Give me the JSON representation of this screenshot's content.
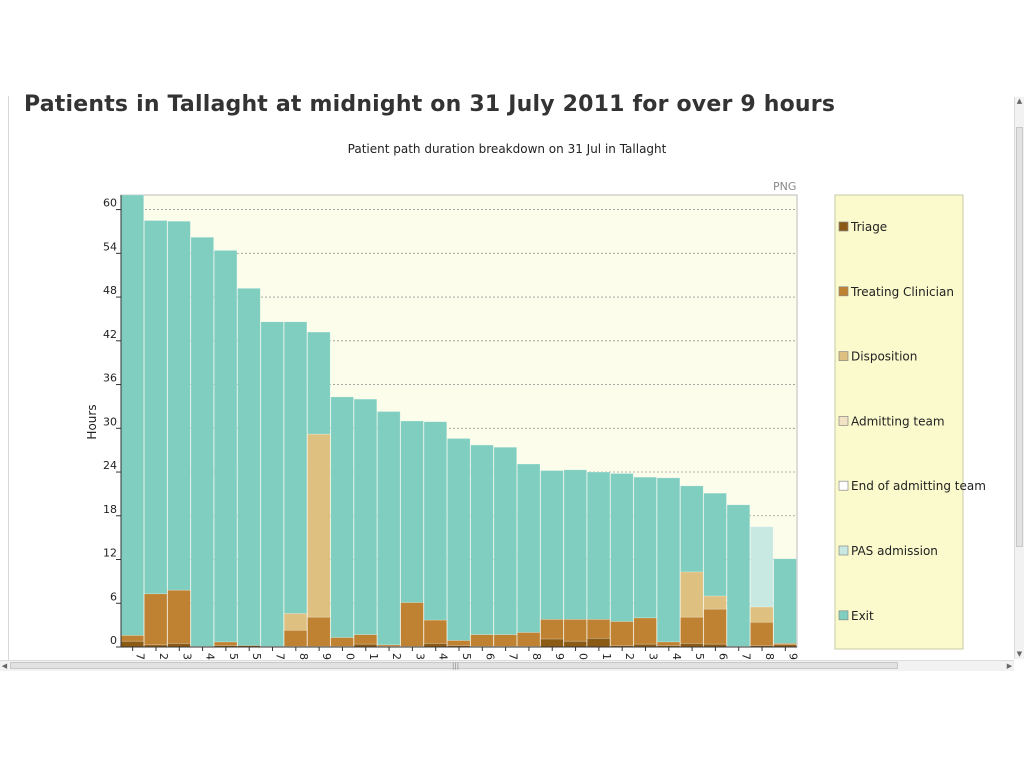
{
  "page": {
    "title": "Patients in Tallaght at midnight on 31 July 2011 for over 9 hours"
  },
  "export_label": "PNG",
  "chart_data": {
    "type": "bar",
    "stacked": true,
    "title": "Patient path duration breakdown on 31 Jul in Tallaght",
    "ylabel": "Hours",
    "xlabel": "",
    "ylim": [
      0,
      62
    ],
    "yticks": [
      0,
      6,
      12,
      18,
      24,
      30,
      36,
      42,
      48,
      54,
      60
    ],
    "grid": true,
    "legend_position": "right",
    "categories": [
      "7",
      "2",
      "3",
      "4",
      "5",
      "5",
      "7",
      "8",
      "9",
      "0",
      "1",
      "2",
      "3",
      "4",
      "5",
      "6",
      "7",
      "8",
      "9",
      "0",
      "1",
      "2",
      "3",
      "4",
      "5",
      "6",
      "7",
      "8",
      "9"
    ],
    "series": [
      {
        "name": "Triage",
        "color": "#8B5A14",
        "values": [
          0.8,
          0.3,
          0.5,
          0.1,
          0.2,
          0.2,
          0.1,
          0.1,
          0.1,
          0.1,
          0.4,
          0.1,
          0.1,
          0.5,
          0.2,
          0.1,
          0.1,
          0.1,
          1.1,
          0.8,
          1.2,
          0.2,
          0.4,
          0.2,
          0.5,
          0.4,
          0.1,
          0.2,
          0.3
        ]
      },
      {
        "name": "Treating Clinician",
        "color": "#BF8232",
        "values": [
          0.8,
          7.0,
          7.3,
          0,
          0.5,
          0,
          0,
          2.2,
          4.0,
          1.2,
          1.3,
          0.2,
          6.0,
          3.2,
          0.7,
          1.6,
          1.6,
          1.9,
          2.7,
          3.0,
          2.6,
          3.3,
          3.6,
          0.5,
          3.6,
          4.8,
          0,
          3.2,
          0.2
        ]
      },
      {
        "name": "Disposition",
        "color": "#DEC080",
        "values": [
          0,
          0,
          0,
          0,
          0,
          0,
          0,
          2.3,
          25.1,
          0,
          0,
          0,
          0,
          0,
          0,
          0,
          0,
          0,
          0,
          0,
          0,
          0,
          0,
          0,
          6.2,
          1.8,
          0,
          2.1,
          0
        ]
      },
      {
        "name": "Admitting team",
        "color": "#F1E3C3",
        "values": [
          0,
          0,
          0,
          0,
          0,
          0,
          0,
          0,
          0,
          0,
          0,
          0,
          0,
          0,
          0,
          0,
          0,
          0,
          0,
          0,
          0,
          0,
          0,
          0,
          0,
          0,
          0,
          0,
          0
        ]
      },
      {
        "name": "End of admitting team",
        "color": "#FFFFFF",
        "values": [
          0,
          0,
          0,
          0,
          0,
          0,
          0,
          0,
          0,
          0,
          0,
          0,
          0,
          0,
          0,
          0,
          0,
          0,
          0,
          0,
          0,
          0,
          0,
          0,
          0,
          0,
          0,
          0,
          0
        ]
      },
      {
        "name": "PAS admission",
        "color": "#C8E8E2",
        "values": [
          0,
          0,
          0,
          0,
          0,
          0,
          0,
          0,
          0,
          0,
          0,
          0,
          0,
          0,
          0,
          0,
          0,
          0,
          0,
          0,
          0,
          0,
          0,
          0,
          0,
          0,
          0,
          11.0,
          0
        ]
      },
      {
        "name": "Exit",
        "color": "#80CEC0",
        "values": [
          60.4,
          51.2,
          50.6,
          56.1,
          53.7,
          49.0,
          44.5,
          40.0,
          14.0,
          33.0,
          32.3,
          32.0,
          24.9,
          27.2,
          27.7,
          26.0,
          25.7,
          23.1,
          20.4,
          20.5,
          20.2,
          20.3,
          19.3,
          22.5,
          11.8,
          14.1,
          19.4,
          0,
          11.6
        ]
      }
    ]
  },
  "colors": {
    "plot_background": "#FDFDEB",
    "legend_background": "#FAFACC",
    "title": "#333333"
  }
}
